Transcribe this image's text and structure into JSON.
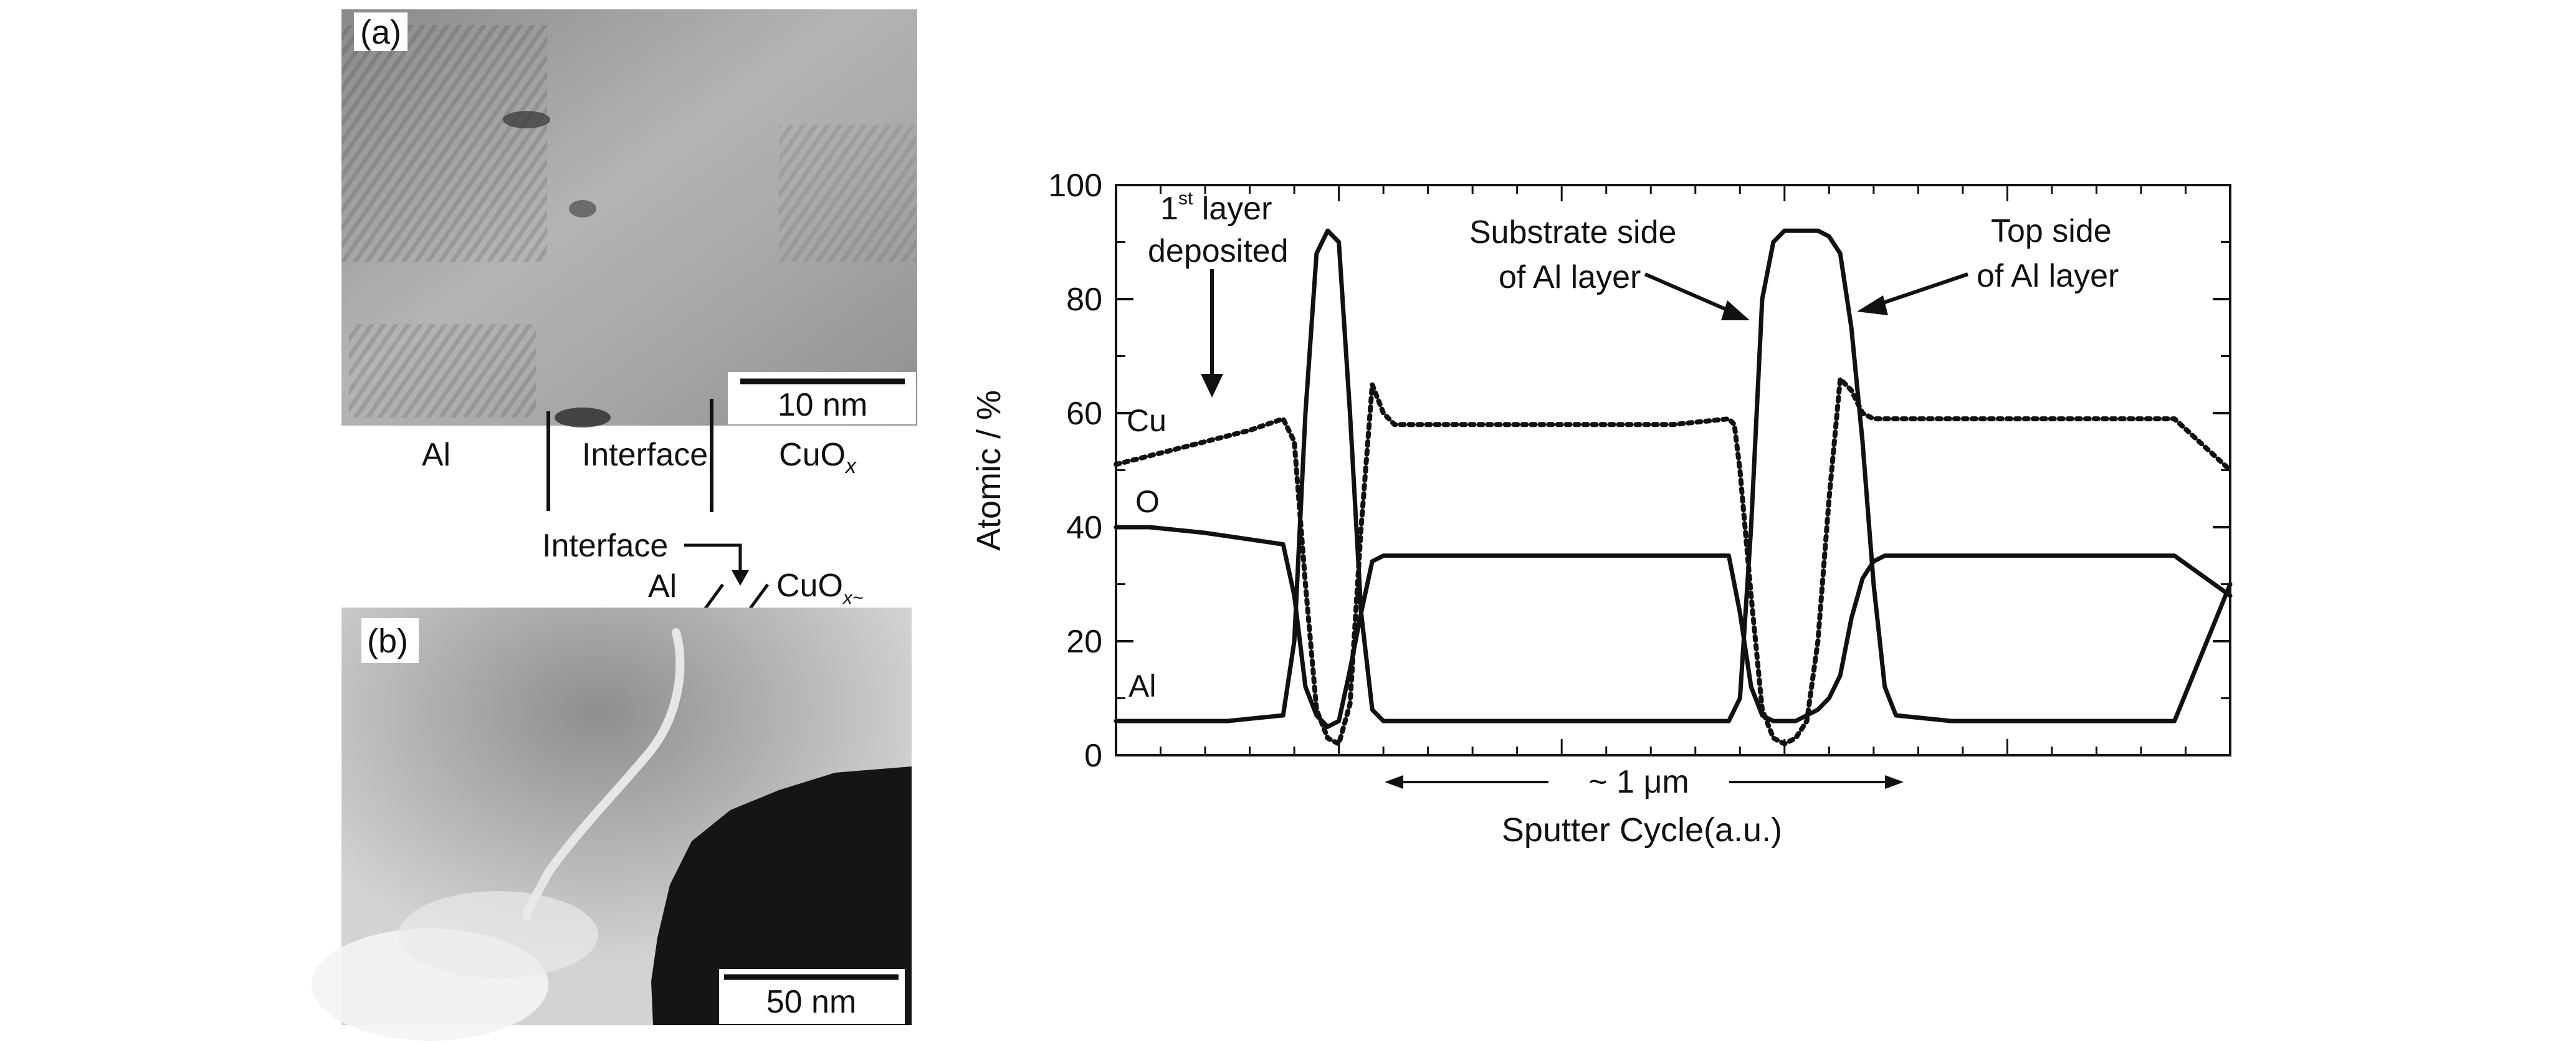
{
  "panel_a": {
    "label": "(a)",
    "scale_bar": "10 nm",
    "regions": [
      "Al",
      "Interface",
      "CuO",
      "x"
    ]
  },
  "panel_b": {
    "label": "(b)",
    "scale_bar": "50 nm",
    "annotations": {
      "interface": "Interface",
      "al": "Al",
      "cuo": "CuO",
      "cuo_sub": "x~"
    }
  },
  "chart_data": {
    "type": "line",
    "ylabel": "Atomic / %",
    "xlabel": "Sputter Cycle(a.u.)",
    "xlim": [
      0,
      100
    ],
    "ylim": [
      0,
      100
    ],
    "yticks": [
      "0",
      "20",
      "40",
      "60",
      "80",
      "100"
    ],
    "annotations": {
      "first_layer": {
        "pre": "1",
        "sup": "st",
        "post": " layer",
        "line2": "deposited"
      },
      "substrate_side": {
        "line1": "Substrate side",
        "line2": "of Al layer"
      },
      "top_side": {
        "line1": "Top side",
        "line2": "of Al layer"
      },
      "scale": "~ 1 μm"
    },
    "series": [
      {
        "name": "Cu",
        "style": "dotted",
        "x": [
          0,
          4,
          8,
          12,
          15,
          16,
          17,
          18,
          19,
          20,
          21,
          22,
          23,
          24,
          25,
          26,
          30,
          40,
          50,
          55,
          55.5,
          56,
          57,
          58,
          59,
          60,
          61,
          62,
          63,
          64,
          65,
          66,
          67,
          68,
          69,
          70,
          75,
          85,
          95,
          100
        ],
        "y": [
          51,
          53,
          55,
          57,
          59,
          55,
          30,
          8,
          3,
          2,
          9,
          40,
          65,
          60,
          58,
          58,
          58,
          58,
          58,
          59,
          58,
          50,
          28,
          8,
          3,
          2,
          3,
          6,
          20,
          45,
          66,
          64,
          60,
          59,
          59,
          59,
          59,
          59,
          59,
          50
        ]
      },
      {
        "name": "O",
        "style": "solid",
        "x": [
          0,
          3,
          8,
          15,
          16,
          17,
          18,
          19,
          20,
          21,
          22,
          23,
          24,
          25,
          26,
          30,
          40,
          50,
          55,
          56,
          57,
          58,
          59,
          60,
          61,
          62,
          63,
          64,
          65,
          66,
          67,
          68,
          69,
          70,
          75,
          85,
          95,
          100
        ],
        "y": [
          40,
          40,
          39,
          37,
          28,
          12,
          7,
          5,
          6,
          15,
          25,
          34,
          35,
          35,
          35,
          35,
          35,
          35,
          35,
          25,
          12,
          7,
          6,
          6,
          6,
          7,
          8,
          10,
          14,
          24,
          31,
          34,
          35,
          35,
          35,
          35,
          35,
          28
        ]
      },
      {
        "name": "Al",
        "style": "solid",
        "x": [
          0,
          10,
          15,
          16,
          17,
          18,
          19,
          20,
          21,
          22,
          23,
          24,
          25,
          26,
          30,
          40,
          50,
          55,
          56,
          57,
          58,
          59,
          60,
          61,
          62,
          63,
          64,
          65,
          66,
          67,
          68,
          69,
          70,
          75,
          85,
          95,
          100
        ],
        "y": [
          6,
          6,
          7,
          20,
          60,
          88,
          92,
          90,
          60,
          25,
          8,
          6,
          6,
          6,
          6,
          6,
          6,
          6,
          10,
          40,
          80,
          90,
          92,
          92,
          92,
          92,
          91,
          88,
          75,
          55,
          30,
          12,
          7,
          6,
          6,
          6,
          30
        ]
      }
    ]
  },
  "colors": {
    "ink": "#111111",
    "background": "#ffffff"
  }
}
